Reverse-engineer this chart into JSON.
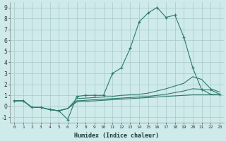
{
  "xlabel": "Humidex (Indice chaleur)",
  "bg_color": "#ceeaea",
  "line_color": "#2d7a6e",
  "grid_color": "#aac8c8",
  "xlim": [
    -0.5,
    23.5
  ],
  "ylim": [
    -1.5,
    9.5
  ],
  "xticks": [
    0,
    1,
    2,
    3,
    4,
    5,
    6,
    7,
    8,
    9,
    10,
    11,
    12,
    13,
    14,
    15,
    16,
    17,
    18,
    19,
    20,
    21,
    22,
    23
  ],
  "yticks": [
    -1,
    0,
    1,
    2,
    3,
    4,
    5,
    6,
    7,
    8,
    9
  ],
  "series": [
    {
      "x": [
        0,
        1,
        2,
        3,
        4,
        5,
        6,
        7,
        8,
        9,
        10,
        11,
        12,
        13,
        14,
        15,
        16,
        17,
        18,
        19,
        20,
        21,
        22,
        23
      ],
      "y": [
        0.5,
        0.5,
        -0.1,
        -0.1,
        -0.3,
        -0.4,
        -1.2,
        0.9,
        1.0,
        1.0,
        1.0,
        3.0,
        3.5,
        5.3,
        7.7,
        8.5,
        9.0,
        8.1,
        8.3,
        6.3,
        3.5,
        1.5,
        1.5,
        1.1
      ],
      "marker": true
    },
    {
      "x": [
        0,
        1,
        2,
        3,
        4,
        5,
        6,
        7,
        8,
        9,
        10,
        11,
        12,
        13,
        14,
        15,
        16,
        17,
        18,
        19,
        20,
        21,
        22,
        23
      ],
      "y": [
        0.5,
        0.5,
        -0.1,
        -0.1,
        -0.3,
        -0.4,
        -0.2,
        0.7,
        0.75,
        0.8,
        0.85,
        0.9,
        1.0,
        1.05,
        1.1,
        1.2,
        1.4,
        1.6,
        1.85,
        2.1,
        2.7,
        2.45,
        1.6,
        1.3
      ],
      "marker": false
    },
    {
      "x": [
        0,
        1,
        2,
        3,
        4,
        5,
        6,
        7,
        8,
        9,
        10,
        11,
        12,
        13,
        14,
        15,
        16,
        17,
        18,
        19,
        20,
        21,
        22,
        23
      ],
      "y": [
        0.5,
        0.5,
        -0.1,
        -0.1,
        -0.3,
        -0.4,
        -0.2,
        0.5,
        0.55,
        0.6,
        0.65,
        0.7,
        0.75,
        0.8,
        0.85,
        0.9,
        1.0,
        1.1,
        1.25,
        1.4,
        1.6,
        1.55,
        1.1,
        1.05
      ],
      "marker": false
    },
    {
      "x": [
        0,
        1,
        2,
        3,
        4,
        5,
        6,
        7,
        8,
        9,
        10,
        11,
        12,
        13,
        14,
        15,
        16,
        17,
        18,
        19,
        20,
        21,
        22,
        23
      ],
      "y": [
        0.5,
        0.5,
        -0.1,
        -0.1,
        -0.3,
        -0.4,
        -0.2,
        0.4,
        0.45,
        0.5,
        0.55,
        0.6,
        0.65,
        0.7,
        0.75,
        0.8,
        0.85,
        0.9,
        0.95,
        1.0,
        1.05,
        1.05,
        1.05,
        1.05
      ],
      "marker": false
    }
  ]
}
